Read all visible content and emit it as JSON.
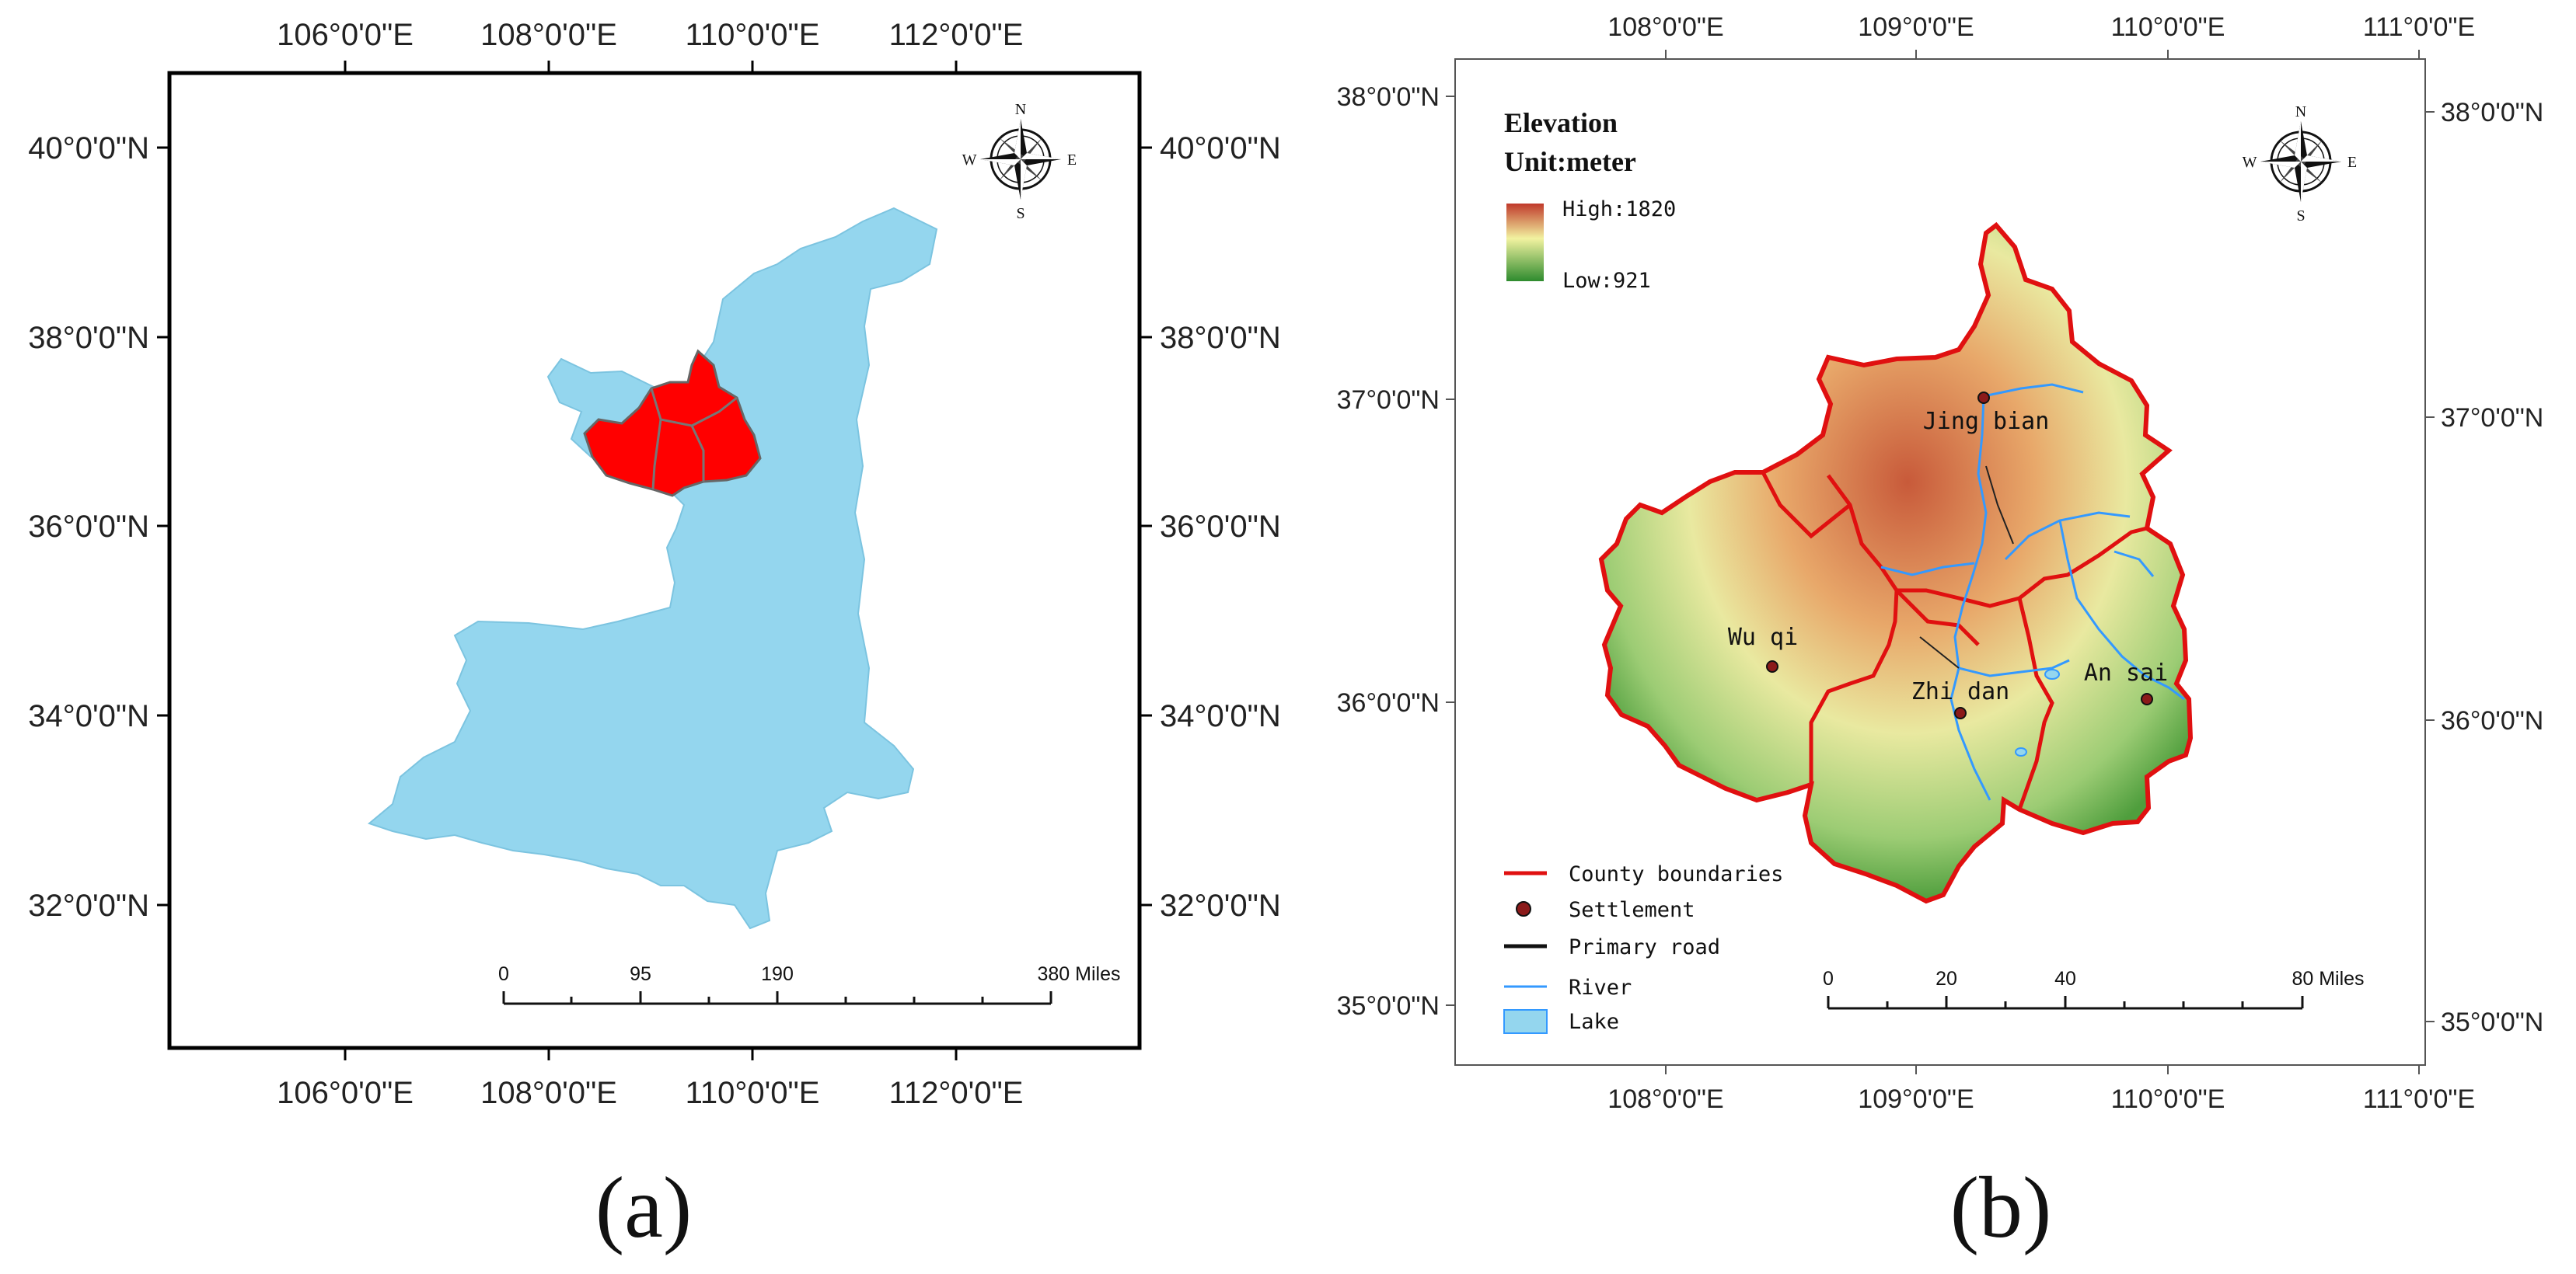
{
  "panel_a": {
    "caption": "(a)",
    "top_lon_labels": [
      "106°0'0\"E",
      "108°0'0\"E",
      "110°0'0\"E",
      "112°0'0\"E"
    ],
    "bottom_lon_labels": [
      "106°0'0\"E",
      "108°0'0\"E",
      "110°0'0\"E",
      "112°0'0\"E"
    ],
    "left_lat_labels": [
      "40°0'0\"N",
      "38°0'0\"N",
      "36°0'0\"N",
      "34°0'0\"N",
      "32°0'0\"N"
    ],
    "right_lat_labels": [
      "40°0'0\"N",
      "38°0'0\"N",
      "36°0'0\"N",
      "34°0'0\"N",
      "32°0'0\"N"
    ],
    "compass": {
      "n": "N",
      "s": "S",
      "e": "E",
      "w": "W"
    },
    "scale": {
      "labels": [
        "0",
        "95",
        "190",
        "380 Miles"
      ]
    },
    "colors": {
      "province": "#94d6ee",
      "study_area": "#ff0000",
      "county_line": "#8c8c8c"
    }
  },
  "panel_b": {
    "caption": "(b)",
    "top_lon_labels": [
      "108°0'0\"E",
      "109°0'0\"E",
      "110°0'0\"E",
      "111°0'0\"E"
    ],
    "bottom_lon_labels": [
      "108°0'0\"E",
      "109°0'0\"E",
      "110°0'0\"E",
      "111°0'0\"E"
    ],
    "left_lat_labels": [
      "38°0'0\"N",
      "37°0'0\"N",
      "36°0'0\"N",
      "35°0'0\"N"
    ],
    "right_lat_labels": [
      "38°0'0\"N",
      "37°0'0\"N",
      "36°0'0\"N",
      "35°0'0\"N"
    ],
    "compass": {
      "n": "N",
      "s": "S",
      "e": "E",
      "w": "W"
    },
    "elevation_legend": {
      "title": "Elevation",
      "unit": "Unit:meter",
      "high": "High:1820",
      "low": "Low:921",
      "colors": {
        "high": "#c0392b",
        "mid": "#f2f2a0",
        "low": "#2e8b2e"
      }
    },
    "towns": [
      "Jing bian",
      "Wu qi",
      "Zhi dan",
      "An sai"
    ],
    "legend": {
      "county": "County boundaries",
      "settlement": "Settlement",
      "road": "Primary road",
      "river": "River",
      "lake": "Lake"
    },
    "legend_colors": {
      "county": "#e01010",
      "settlement": "#8b1a1a",
      "road": "#111111",
      "river": "#3399ff",
      "lake": "#94d6ee"
    },
    "scale": {
      "labels": [
        "0",
        "20",
        "40",
        "80 Miles"
      ]
    }
  }
}
